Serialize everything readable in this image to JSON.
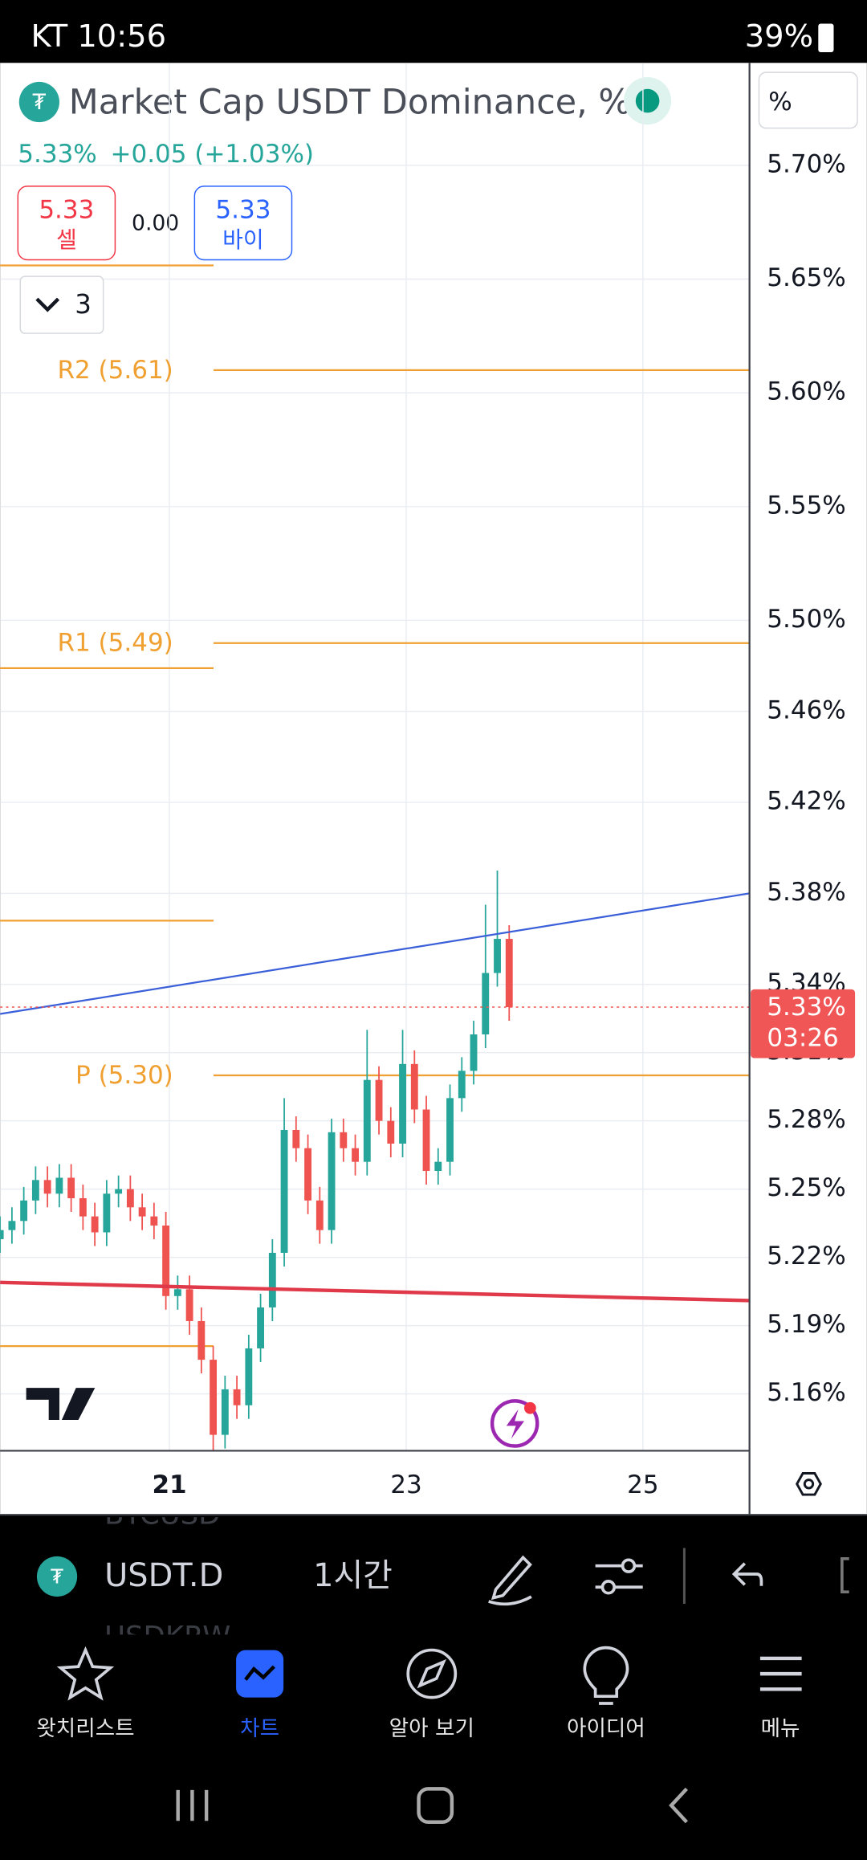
{
  "status_bar": {
    "carrier_time": "KT 10:56",
    "battery": "39%"
  },
  "header": {
    "title": "Market Cap USDT Dominance, %",
    "last": "5.33%",
    "change": "+0.05 (+1.03%)",
    "scale_button": "%",
    "sell_price": "5.33",
    "sell_label": "셀",
    "spread": "0.00",
    "buy_price": "5.33",
    "buy_label": "바이",
    "indicator_count": "3"
  },
  "chart": {
    "type": "candlestick",
    "x": [
      19.57,
      19.67,
      19.77,
      19.87,
      19.97,
      20.07,
      20.17,
      20.27,
      20.37,
      20.47,
      20.57,
      20.67,
      20.77,
      20.87,
      20.97,
      21.07,
      21.17,
      21.27,
      21.37,
      21.47,
      21.57,
      21.67,
      21.77,
      21.87,
      21.97,
      22.07,
      22.17,
      22.27,
      22.37,
      22.47,
      22.57,
      22.67,
      22.77,
      22.87,
      22.97,
      23.07,
      23.17,
      23.27,
      23.37,
      23.47,
      23.57,
      23.67,
      23.77,
      23.87
    ],
    "open": [
      5.228,
      5.232,
      5.236,
      5.245,
      5.254,
      5.248,
      5.255,
      5.246,
      5.238,
      5.231,
      5.248,
      5.25,
      5.242,
      5.238,
      5.234,
      5.203,
      5.206,
      5.192,
      5.175,
      5.142,
      5.162,
      5.155,
      5.18,
      5.198,
      5.222,
      5.276,
      5.268,
      5.245,
      5.232,
      5.275,
      5.268,
      5.262,
      5.298,
      5.28,
      5.27,
      5.305,
      5.285,
      5.258,
      5.262,
      5.29,
      5.302,
      5.318,
      5.345,
      5.36
    ],
    "high": [
      5.238,
      5.242,
      5.251,
      5.26,
      5.26,
      5.261,
      5.261,
      5.252,
      5.244,
      5.254,
      5.256,
      5.256,
      5.248,
      5.244,
      5.24,
      5.212,
      5.212,
      5.198,
      5.181,
      5.168,
      5.168,
      5.186,
      5.204,
      5.228,
      5.29,
      5.282,
      5.274,
      5.251,
      5.281,
      5.281,
      5.274,
      5.32,
      5.304,
      5.286,
      5.32,
      5.311,
      5.291,
      5.268,
      5.296,
      5.308,
      5.324,
      5.375,
      5.39,
      5.366
    ],
    "low": [
      5.222,
      5.226,
      5.23,
      5.239,
      5.242,
      5.242,
      5.24,
      5.232,
      5.225,
      5.225,
      5.242,
      5.236,
      5.232,
      5.228,
      5.197,
      5.197,
      5.186,
      5.169,
      5.135,
      5.136,
      5.149,
      5.149,
      5.174,
      5.192,
      5.216,
      5.262,
      5.239,
      5.226,
      5.226,
      5.262,
      5.256,
      5.256,
      5.274,
      5.264,
      5.264,
      5.279,
      5.252,
      5.252,
      5.256,
      5.284,
      5.296,
      5.312,
      5.339,
      5.324
    ],
    "close": [
      5.232,
      5.236,
      5.245,
      5.254,
      5.248,
      5.255,
      5.246,
      5.238,
      5.231,
      5.248,
      5.25,
      5.242,
      5.238,
      5.234,
      5.203,
      5.206,
      5.192,
      5.175,
      5.142,
      5.162,
      5.155,
      5.18,
      5.198,
      5.222,
      5.276,
      5.268,
      5.245,
      5.232,
      5.275,
      5.268,
      5.262,
      5.298,
      5.28,
      5.27,
      5.305,
      5.285,
      5.258,
      5.262,
      5.29,
      5.302,
      5.318,
      5.345,
      5.36,
      5.33
    ],
    "up_color": "#26a69a",
    "down_color": "#ef5350",
    "xlim": [
      19.57,
      25.9
    ],
    "xticks": [
      21,
      23,
      25
    ],
    "ylim": [
      5.135,
      5.744
    ],
    "yticks": [
      {
        "value": 5.7,
        "label": "5.70%"
      },
      {
        "value": 5.65,
        "label": "5.65%"
      },
      {
        "value": 5.6,
        "label": "5.60%"
      },
      {
        "value": 5.55,
        "label": "5.55%"
      },
      {
        "value": 5.5,
        "label": "5.50%"
      },
      {
        "value": 5.46,
        "label": "5.46%"
      },
      {
        "value": 5.42,
        "label": "5.42%"
      },
      {
        "value": 5.38,
        "label": "5.38%"
      },
      {
        "value": 5.34,
        "label": "5.34%"
      },
      {
        "value": 5.31,
        "label": "5.31%"
      },
      {
        "value": 5.28,
        "label": "5.28%"
      },
      {
        "value": 5.25,
        "label": "5.25%"
      },
      {
        "value": 5.22,
        "label": "5.22%"
      },
      {
        "value": 5.19,
        "label": "5.19%"
      },
      {
        "value": 5.16,
        "label": "5.16%"
      }
    ],
    "grid": true,
    "pivots": [
      {
        "label": "R2 (5.61)",
        "value": 5.61
      },
      {
        "label": "R1 (5.49)",
        "value": 5.49
      },
      {
        "label": "P (5.30)",
        "value": 5.3
      }
    ],
    "pivot_color": "#f0a030",
    "earlier_levels": [
      5.656,
      5.479,
      5.368,
      5.181
    ],
    "trendlines": [
      {
        "color": "#3a5fd9",
        "x": [
          19.57,
          25.9
        ],
        "values": [
          5.327,
          5.38
        ]
      },
      {
        "color": "#e03a4a",
        "x": [
          19.57,
          25.9
        ],
        "values": [
          5.209,
          5.201
        ]
      }
    ],
    "last_price": {
      "value": 5.33,
      "label": "5.33%"
    },
    "countdown": "03:26"
  },
  "toolbar": {
    "symbol": "USDT.D",
    "interval": "1시간",
    "faded_above": "BTCUSD",
    "faded_below": "USDKRW"
  },
  "nav": [
    "왓치리스트",
    "차트",
    "알아 보기",
    "아이디어",
    "메뉴"
  ]
}
